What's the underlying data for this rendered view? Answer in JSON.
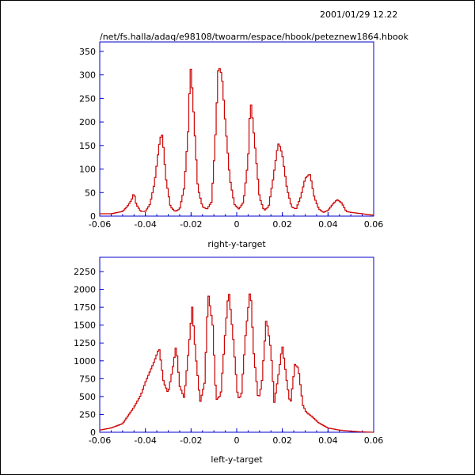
{
  "header": {
    "timestamp": "2001/01/29   12.22",
    "file_path": "/net/fs.halla/adaq/e98108/twoarm/espace/hbook/peteznew1864.hbook"
  },
  "colors": {
    "axes": "#0000cc",
    "histogram": "#cc0000",
    "text": "#000000"
  },
  "chart_data": [
    {
      "type": "line",
      "xlabel": "right-y-target",
      "ylabel": "",
      "xlim": [
        -0.06,
        0.06
      ],
      "ylim": [
        0,
        370
      ],
      "xticks": [
        "-0.06",
        "-0.04",
        "-0.02",
        "0",
        "0.02",
        "0.04",
        "0.06"
      ],
      "yticks": [
        "0",
        "50",
        "100",
        "150",
        "200",
        "250",
        "300",
        "350"
      ],
      "series": [
        {
          "x": [
            -0.06,
            -0.055,
            -0.05,
            -0.048,
            -0.046,
            -0.045,
            -0.044,
            -0.042,
            -0.04,
            -0.038,
            -0.036,
            -0.034,
            -0.033,
            -0.0325,
            -0.031,
            -0.029,
            -0.027,
            -0.025,
            -0.023,
            -0.021,
            -0.0205,
            -0.02,
            -0.019,
            -0.017,
            -0.015,
            -0.013,
            -0.011,
            -0.0095,
            -0.008,
            -0.0065,
            -0.005,
            -0.003,
            -0.001,
            0.001,
            0.003,
            0.005,
            0.006,
            0.0065,
            0.008,
            0.01,
            0.012,
            0.014,
            0.016,
            0.018,
            0.0185,
            0.02,
            0.022,
            0.024,
            0.026,
            0.028,
            0.03,
            0.032,
            0.0325,
            0.034,
            0.036,
            0.038,
            0.04,
            0.042,
            0.044,
            0.046,
            0.048,
            0.05,
            0.055,
            0.06
          ],
          "y": [
            5,
            5,
            10,
            20,
            35,
            50,
            25,
            10,
            10,
            25,
            70,
            150,
            175,
            170,
            80,
            20,
            10,
            15,
            60,
            200,
            300,
            315,
            230,
            60,
            20,
            15,
            30,
            150,
            320,
            300,
            200,
            80,
            25,
            15,
            30,
            120,
            245,
            230,
            150,
            40,
            12,
            20,
            80,
            150,
            155,
            130,
            60,
            20,
            15,
            40,
            80,
            90,
            80,
            40,
            15,
            8,
            12,
            25,
            35,
            28,
            10,
            8,
            5,
            2
          ]
        }
      ]
    },
    {
      "type": "line",
      "xlabel": "left-y-target",
      "ylabel": "",
      "xlim": [
        -0.06,
        0.06
      ],
      "ylim": [
        0,
        2450
      ],
      "xticks": [
        "-0.06",
        "-0.04",
        "-0.02",
        "0",
        "0.02",
        "0.04",
        "0.06"
      ],
      "yticks": [
        "0",
        "250",
        "500",
        "750",
        "1000",
        "1250",
        "1500",
        "1750",
        "2000",
        "2250"
      ],
      "series": [
        {
          "x": [
            -0.06,
            -0.055,
            -0.05,
            -0.045,
            -0.042,
            -0.04,
            -0.038,
            -0.036,
            -0.034,
            -0.032,
            -0.03,
            -0.028,
            -0.0265,
            -0.025,
            -0.023,
            -0.0215,
            -0.0195,
            -0.018,
            -0.016,
            -0.014,
            -0.0125,
            -0.0105,
            -0.009,
            -0.007,
            -0.005,
            -0.0035,
            -0.0015,
            0.0005,
            0.002,
            0.004,
            0.006,
            0.0075,
            0.0095,
            0.011,
            0.013,
            0.015,
            0.0165,
            0.0185,
            0.02,
            0.022,
            0.0235,
            0.0255,
            0.027,
            0.029,
            0.0305,
            0.033,
            0.036,
            0.04,
            0.045,
            0.05,
            0.055,
            0.06
          ],
          "y": [
            30,
            60,
            120,
            350,
            520,
            700,
            850,
            1000,
            1180,
            700,
            550,
            900,
            1220,
            650,
            480,
            1000,
            1750,
            1100,
            420,
            700,
            1950,
            1500,
            450,
            520,
            1400,
            2000,
            1300,
            480,
            500,
            1400,
            2030,
            1100,
            450,
            680,
            1600,
            1150,
            420,
            850,
            1220,
            700,
            380,
            950,
            900,
            380,
            280,
            220,
            130,
            60,
            30,
            15,
            5,
            0
          ]
        }
      ]
    }
  ]
}
